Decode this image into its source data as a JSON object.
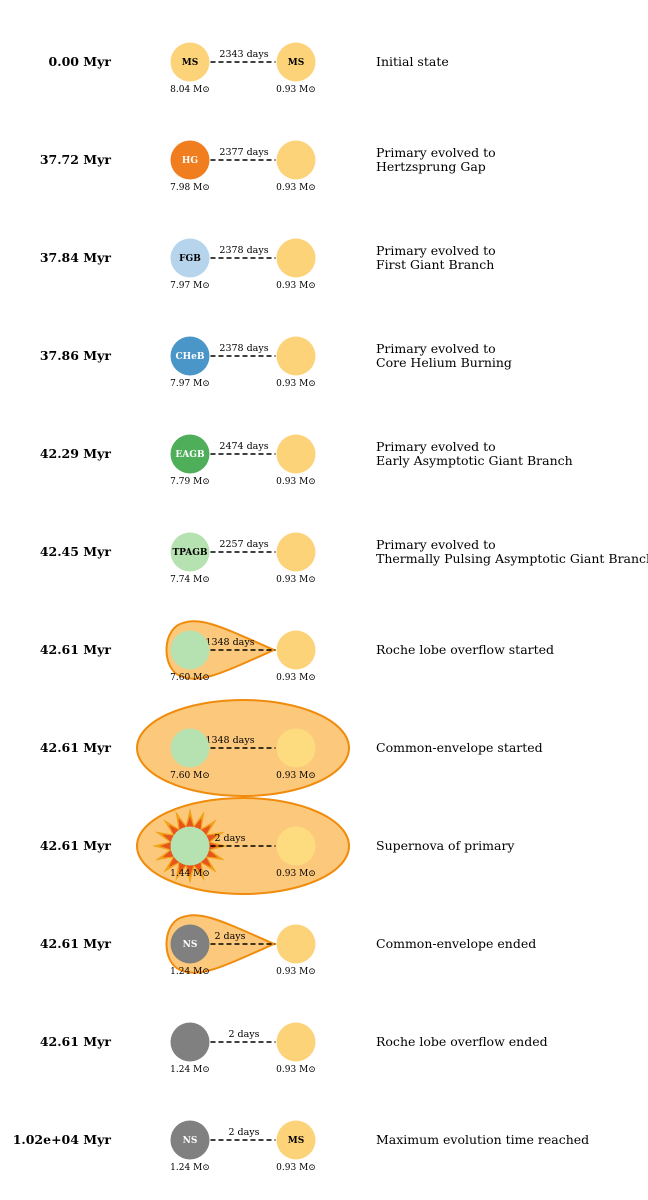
{
  "colors": {
    "MS": "#fdd37a",
    "HG": "#f07e1e",
    "FGB": "#b6d4ec",
    "CHeB": "#4b96c8",
    "EAGB": "#4fae5a",
    "TPAGB": "#b6e1b0",
    "NS": "#808080",
    "envelope_fill": "#fcc97c",
    "envelope_stroke": "#f08b0c",
    "supernova_outer": "#f0a218",
    "supernova_inner": "#e8541a"
  },
  "mass_unit": "M⊙",
  "rows": [
    {
      "time": "0.00 Myr",
      "period": "2343 days",
      "primary": {
        "type": "MS",
        "label": "MS",
        "mass": "8.04"
      },
      "secondary": {
        "type": "MS",
        "label": "MS",
        "mass": "0.93"
      },
      "envelope": "none",
      "supernova": false,
      "desc": [
        "Initial state"
      ]
    },
    {
      "time": "37.72 Myr",
      "period": "2377 days",
      "primary": {
        "type": "HG",
        "label": "HG",
        "mass": "7.98"
      },
      "secondary": {
        "type": "MS",
        "label": "",
        "mass": "0.93"
      },
      "envelope": "none",
      "supernova": false,
      "desc": [
        "Primary evolved to",
        "Hertzsprung Gap"
      ]
    },
    {
      "time": "37.84 Myr",
      "period": "2378 days",
      "primary": {
        "type": "FGB",
        "label": "FGB",
        "mass": "7.97"
      },
      "secondary": {
        "type": "MS",
        "label": "",
        "mass": "0.93"
      },
      "envelope": "none",
      "supernova": false,
      "desc": [
        "Primary evolved to",
        "First Giant Branch"
      ]
    },
    {
      "time": "37.86 Myr",
      "period": "2378 days",
      "primary": {
        "type": "CHeB",
        "label": "CHeB",
        "mass": "7.97"
      },
      "secondary": {
        "type": "MS",
        "label": "",
        "mass": "0.93"
      },
      "envelope": "none",
      "supernova": false,
      "desc": [
        "Primary evolved to",
        "Core Helium Burning"
      ]
    },
    {
      "time": "42.29 Myr",
      "period": "2474 days",
      "primary": {
        "type": "EAGB",
        "label": "EAGB",
        "mass": "7.79"
      },
      "secondary": {
        "type": "MS",
        "label": "",
        "mass": "0.93"
      },
      "envelope": "none",
      "supernova": false,
      "desc": [
        "Primary evolved to",
        "Early Asymptotic Giant Branch"
      ]
    },
    {
      "time": "42.45 Myr",
      "period": "2257 days",
      "primary": {
        "type": "TPAGB",
        "label": "TPAGB",
        "mass": "7.74"
      },
      "secondary": {
        "type": "MS",
        "label": "",
        "mass": "0.93"
      },
      "envelope": "none",
      "supernova": false,
      "desc": [
        "Primary evolved to",
        "Thermally Pulsing Asymptotic Giant Branch"
      ]
    },
    {
      "time": "42.61 Myr",
      "period": "1348 days",
      "primary": {
        "type": "TPAGB",
        "label": "",
        "mass": "7.60"
      },
      "secondary": {
        "type": "MS",
        "label": "",
        "mass": "0.93"
      },
      "envelope": "roche",
      "supernova": false,
      "desc": [
        "Roche lobe overflow started"
      ]
    },
    {
      "time": "42.61 Myr",
      "period": "1348 days",
      "primary": {
        "type": "TPAGB",
        "label": "",
        "mass": "7.60"
      },
      "secondary": {
        "type": "MS",
        "label": "",
        "mass": "0.93"
      },
      "envelope": "common",
      "supernova": false,
      "desc": [
        "Common-envelope started"
      ]
    },
    {
      "time": "42.61 Myr",
      "period": "2 days",
      "primary": {
        "type": "TPAGB",
        "label": "",
        "mass": "1.44"
      },
      "secondary": {
        "type": "MS",
        "label": "",
        "mass": "0.93"
      },
      "envelope": "common",
      "supernova": true,
      "desc": [
        "Supernova of primary"
      ]
    },
    {
      "time": "42.61 Myr",
      "period": "2 days",
      "primary": {
        "type": "NS",
        "label": "NS",
        "mass": "1.24"
      },
      "secondary": {
        "type": "MS",
        "label": "",
        "mass": "0.93"
      },
      "envelope": "roche",
      "supernova": false,
      "desc": [
        "Common-envelope ended"
      ]
    },
    {
      "time": "42.61 Myr",
      "period": "2 days",
      "primary": {
        "type": "NS",
        "label": "",
        "mass": "1.24"
      },
      "secondary": {
        "type": "MS",
        "label": "",
        "mass": "0.93"
      },
      "envelope": "none",
      "supernova": false,
      "desc": [
        "Roche lobe overflow ended"
      ]
    },
    {
      "time": "1.02e+04 Myr",
      "period": "2 days",
      "primary": {
        "type": "NS",
        "label": "NS",
        "mass": "1.24"
      },
      "secondary": {
        "type": "MS",
        "label": "MS",
        "mass": "0.93"
      },
      "envelope": "none",
      "supernova": false,
      "desc": [
        "Maximum evolution time reached"
      ]
    }
  ]
}
